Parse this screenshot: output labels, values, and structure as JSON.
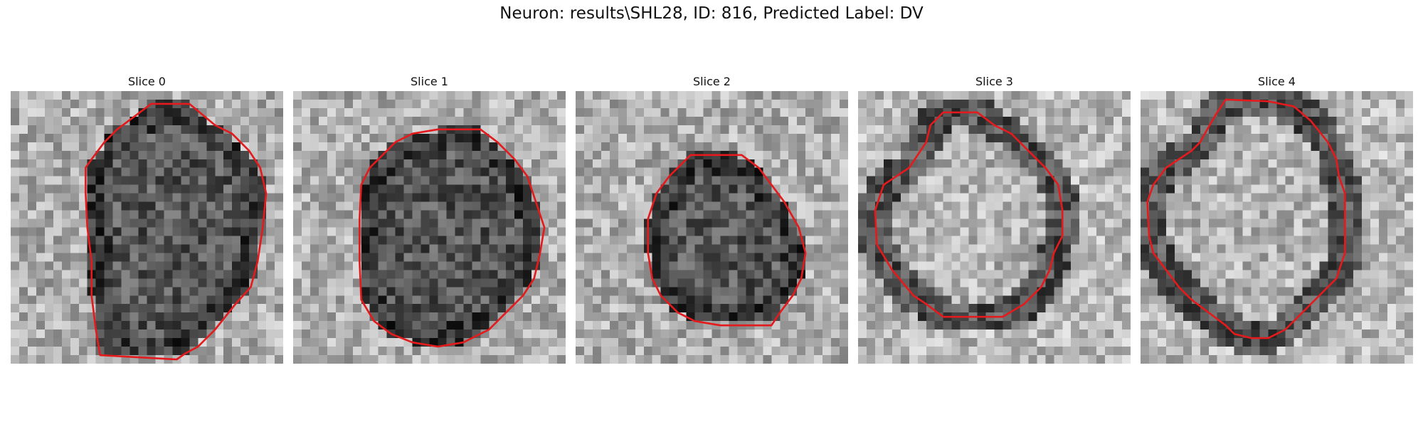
{
  "figure": {
    "title": "Neuron: results\\SHL28, ID: 816, Predicted Label: DV",
    "contour_color": "#e41a1c",
    "colormap": "grayscale",
    "panels": [
      {
        "label": "Slice 0",
        "core": "dark",
        "contour": [
          [
            14.5,
            3
          ],
          [
            16.5,
            1.5
          ],
          [
            21,
            1.5
          ],
          [
            24,
            4
          ],
          [
            26,
            5
          ],
          [
            28,
            7
          ],
          [
            29.3,
            9
          ],
          [
            30,
            12
          ],
          [
            29.6,
            16
          ],
          [
            29,
            20
          ],
          [
            28.2,
            23
          ],
          [
            26.4,
            25
          ],
          [
            24,
            28
          ],
          [
            22,
            30
          ],
          [
            20.5,
            30.8
          ],
          [
            19.5,
            31.5
          ],
          [
            10.5,
            31
          ],
          [
            10,
            28
          ],
          [
            9.5,
            24
          ],
          [
            9.5,
            20
          ],
          [
            9,
            16
          ],
          [
            8.8,
            12
          ],
          [
            8.8,
            9
          ],
          [
            9.5,
            8
          ],
          [
            11,
            6
          ],
          [
            12.5,
            4.5
          ]
        ]
      },
      {
        "label": "Slice 1",
        "core": "dark",
        "contour": [
          [
            14,
            5
          ],
          [
            17,
            4.5
          ],
          [
            22,
            4.5
          ],
          [
            24,
            6
          ],
          [
            26,
            8
          ],
          [
            27.5,
            10
          ],
          [
            28.5,
            13
          ],
          [
            29.5,
            16
          ],
          [
            29,
            19
          ],
          [
            28.3,
            22
          ],
          [
            27,
            24
          ],
          [
            25,
            26
          ],
          [
            23,
            28
          ],
          [
            20,
            29.5
          ],
          [
            17,
            30
          ],
          [
            14,
            29.5
          ],
          [
            11.5,
            28.5
          ],
          [
            9.5,
            27
          ],
          [
            8,
            24.5
          ],
          [
            7.8,
            20
          ],
          [
            7.8,
            15
          ],
          [
            8,
            11
          ],
          [
            9,
            9
          ],
          [
            10.5,
            7.5
          ],
          [
            12,
            6
          ]
        ]
      },
      {
        "label": "Slice 2",
        "core": "dark",
        "contour": [
          [
            13.5,
            7.5
          ],
          [
            19.5,
            7.5
          ],
          [
            21.5,
            9
          ],
          [
            23,
            11
          ],
          [
            24.5,
            13
          ],
          [
            26.2,
            16
          ],
          [
            27,
            19
          ],
          [
            26.5,
            22
          ],
          [
            25.5,
            24
          ],
          [
            24,
            26
          ],
          [
            23,
            27.5
          ],
          [
            17,
            27.5
          ],
          [
            14,
            27
          ],
          [
            12,
            26
          ],
          [
            10,
            24
          ],
          [
            9,
            22
          ],
          [
            8.5,
            19
          ],
          [
            8.5,
            15
          ],
          [
            9.5,
            12
          ],
          [
            11,
            10
          ]
        ]
      },
      {
        "label": "Slice 3",
        "core": "light",
        "contour": [
          [
            10,
            2.5
          ],
          [
            14,
            2.5
          ],
          [
            16,
            4
          ],
          [
            18,
            5
          ],
          [
            20,
            7
          ],
          [
            22,
            9
          ],
          [
            23.5,
            11
          ],
          [
            24,
            14
          ],
          [
            24,
            17
          ],
          [
            23,
            19
          ],
          [
            22.5,
            21
          ],
          [
            21.5,
            23
          ],
          [
            19.5,
            25
          ],
          [
            17,
            26.5
          ],
          [
            10,
            26.5
          ],
          [
            8,
            25
          ],
          [
            6.5,
            24
          ],
          [
            4,
            21
          ],
          [
            2.2,
            18
          ],
          [
            2,
            14
          ],
          [
            3,
            11
          ],
          [
            4.5,
            10
          ],
          [
            6,
            9
          ],
          [
            8,
            6
          ],
          [
            8.5,
            4
          ]
        ]
      },
      {
        "label": "Slice 4",
        "core": "light",
        "contour": [
          [
            10,
            1
          ],
          [
            15,
            1.2
          ],
          [
            18,
            1.8
          ],
          [
            20,
            3.5
          ],
          [
            22,
            6
          ],
          [
            23,
            8
          ],
          [
            23.3,
            10
          ],
          [
            24,
            12
          ],
          [
            24,
            15
          ],
          [
            24,
            19
          ],
          [
            23,
            22
          ],
          [
            22,
            23
          ],
          [
            21,
            24
          ],
          [
            19,
            26
          ],
          [
            17,
            28
          ],
          [
            15,
            29
          ],
          [
            13,
            29
          ],
          [
            11,
            28.5
          ],
          [
            10,
            27.5
          ],
          [
            8,
            26
          ],
          [
            6,
            24.5
          ],
          [
            4.5,
            23
          ],
          [
            3,
            21
          ],
          [
            1.5,
            19
          ],
          [
            1,
            17
          ],
          [
            0.8,
            13
          ],
          [
            1.5,
            11
          ],
          [
            3,
            9
          ],
          [
            4.5,
            8
          ],
          [
            6,
            7
          ],
          [
            7,
            6
          ],
          [
            8,
            4.2
          ],
          [
            9,
            2.5
          ]
        ]
      }
    ]
  }
}
